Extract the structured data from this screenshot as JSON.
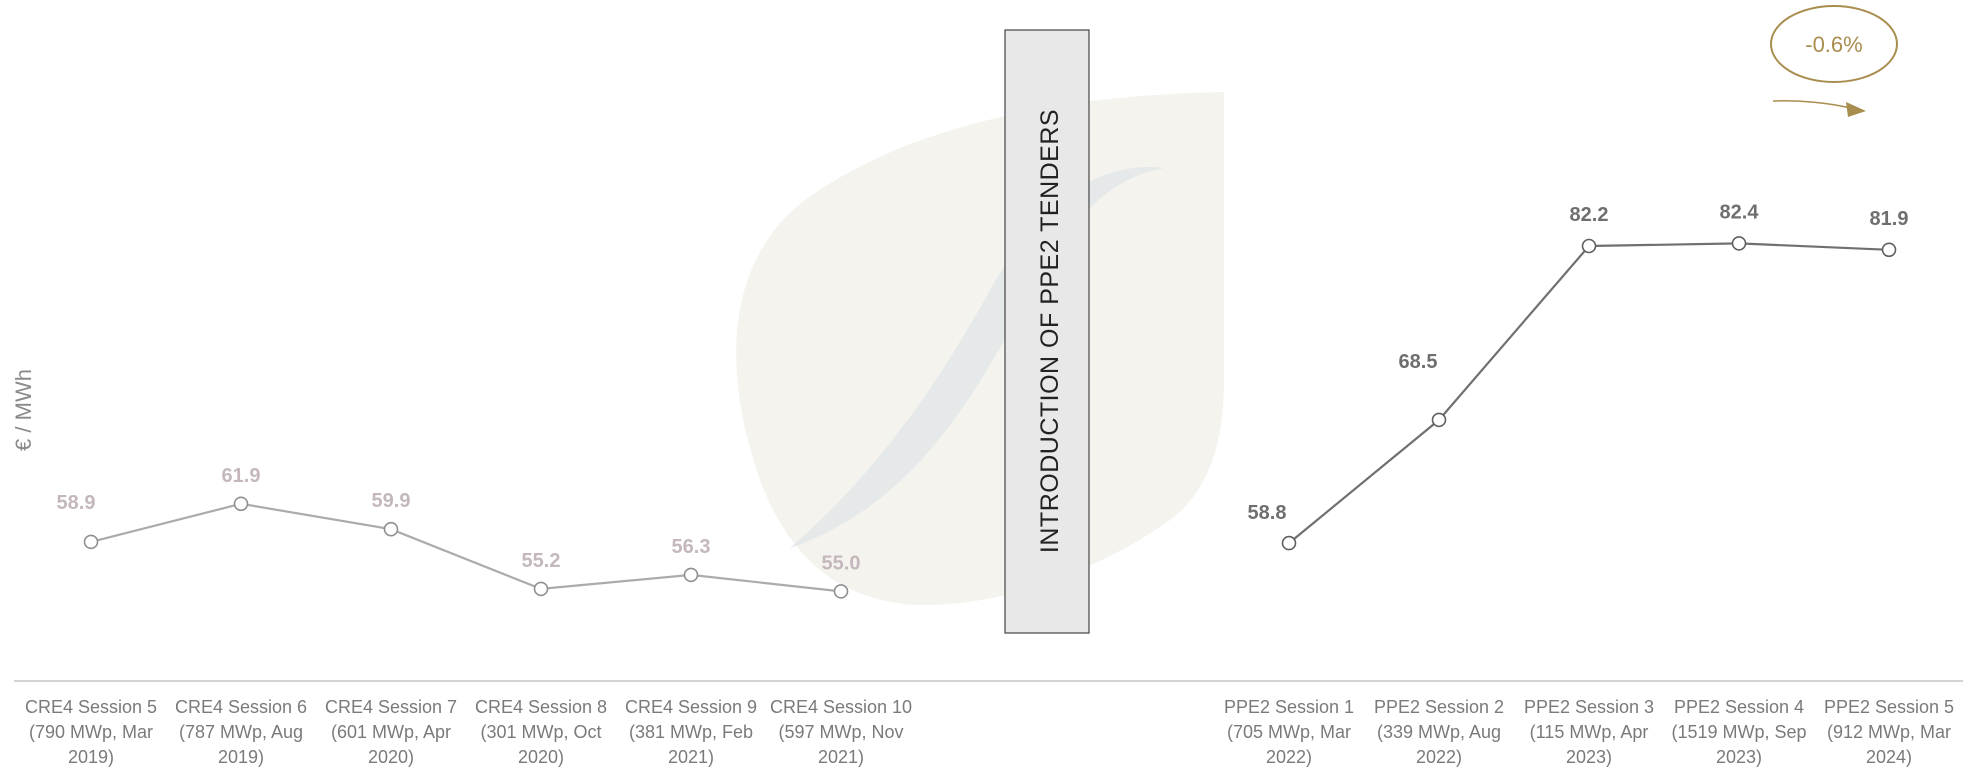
{
  "chart_data": {
    "type": "line",
    "ylabel": "€ / MWh",
    "series": [
      {
        "categories": [
          "CRE4 Session 5 (790 MWp, Mar 2019)",
          "CRE4 Session 6 (787 MWp, Aug 2019)",
          "CRE4 Session 7 (601 MWp, Apr 2020)",
          "CRE4 Session 8 (301 MWp, Oct 2020)",
          "CRE4 Session 9 (381 MWp, Feb 2021)",
          "CRE4 Session 10 (597 MWp, Nov 2021)"
        ],
        "tick_lines": [
          [
            "CRE4 Session 5",
            "(790 MWp, Mar",
            "2019)"
          ],
          [
            "CRE4 Session 6",
            "(787 MWp, Aug",
            "2019)"
          ],
          [
            "CRE4 Session 7",
            "(601 MWp, Apr",
            "2020)"
          ],
          [
            "CRE4 Session 8",
            "(301 MWp, Oct",
            "2020)"
          ],
          [
            "CRE4 Session 9",
            "(381 MWp, Feb",
            "2021)"
          ],
          [
            "CRE4 Session 10",
            "(597 MWp, Nov",
            "2021)"
          ]
        ],
        "values": [
          58.9,
          61.9,
          59.9,
          55.2,
          56.3,
          55.0
        ],
        "labels": [
          "58.9",
          "61.9",
          "59.9",
          "55.2",
          "56.3",
          "55.0"
        ],
        "color": "#ababab",
        "label_color": "#c4b8bd"
      },
      {
        "categories": [
          "PPE2 Session 1 (705 MWp, Mar 2022)",
          "PPE2 Session 2 (339 MWp, Aug 2022)",
          "PPE2 Session 3 (115 MWp, Apr 2023)",
          "PPE2 Session 4 (1519 MWp, Sep 2023)",
          "PPE2 Session 5 (912 MWp, Mar 2024)"
        ],
        "tick_lines": [
          [
            "PPE2 Session 1",
            "(705 MWp, Mar",
            "2022)"
          ],
          [
            "PPE2 Session 2",
            "(339 MWp, Aug",
            "2022)"
          ],
          [
            "PPE2 Session 3",
            "(115 MWp, Apr",
            "2023)"
          ],
          [
            "PPE2 Session 4",
            "(1519 MWp, Sep",
            "2023)"
          ],
          [
            "PPE2 Session 5",
            "(912 MWp, Mar",
            "2024)"
          ]
        ],
        "values": [
          58.8,
          68.5,
          82.2,
          82.4,
          81.9
        ],
        "labels": [
          "58.8",
          "68.5",
          "82.2",
          "82.4",
          "81.9"
        ],
        "color": "#707070",
        "label_color": "#6f6f6f"
      }
    ],
    "annotations": {
      "banner": "INTRODUCTION OF PPE2 TENDERS",
      "change_badge": "-0.6%"
    },
    "grid": false,
    "colors": {
      "badge": "#a88d4e",
      "banner_fill": "#e8e8e8",
      "axis": "#c9c3c3"
    }
  }
}
